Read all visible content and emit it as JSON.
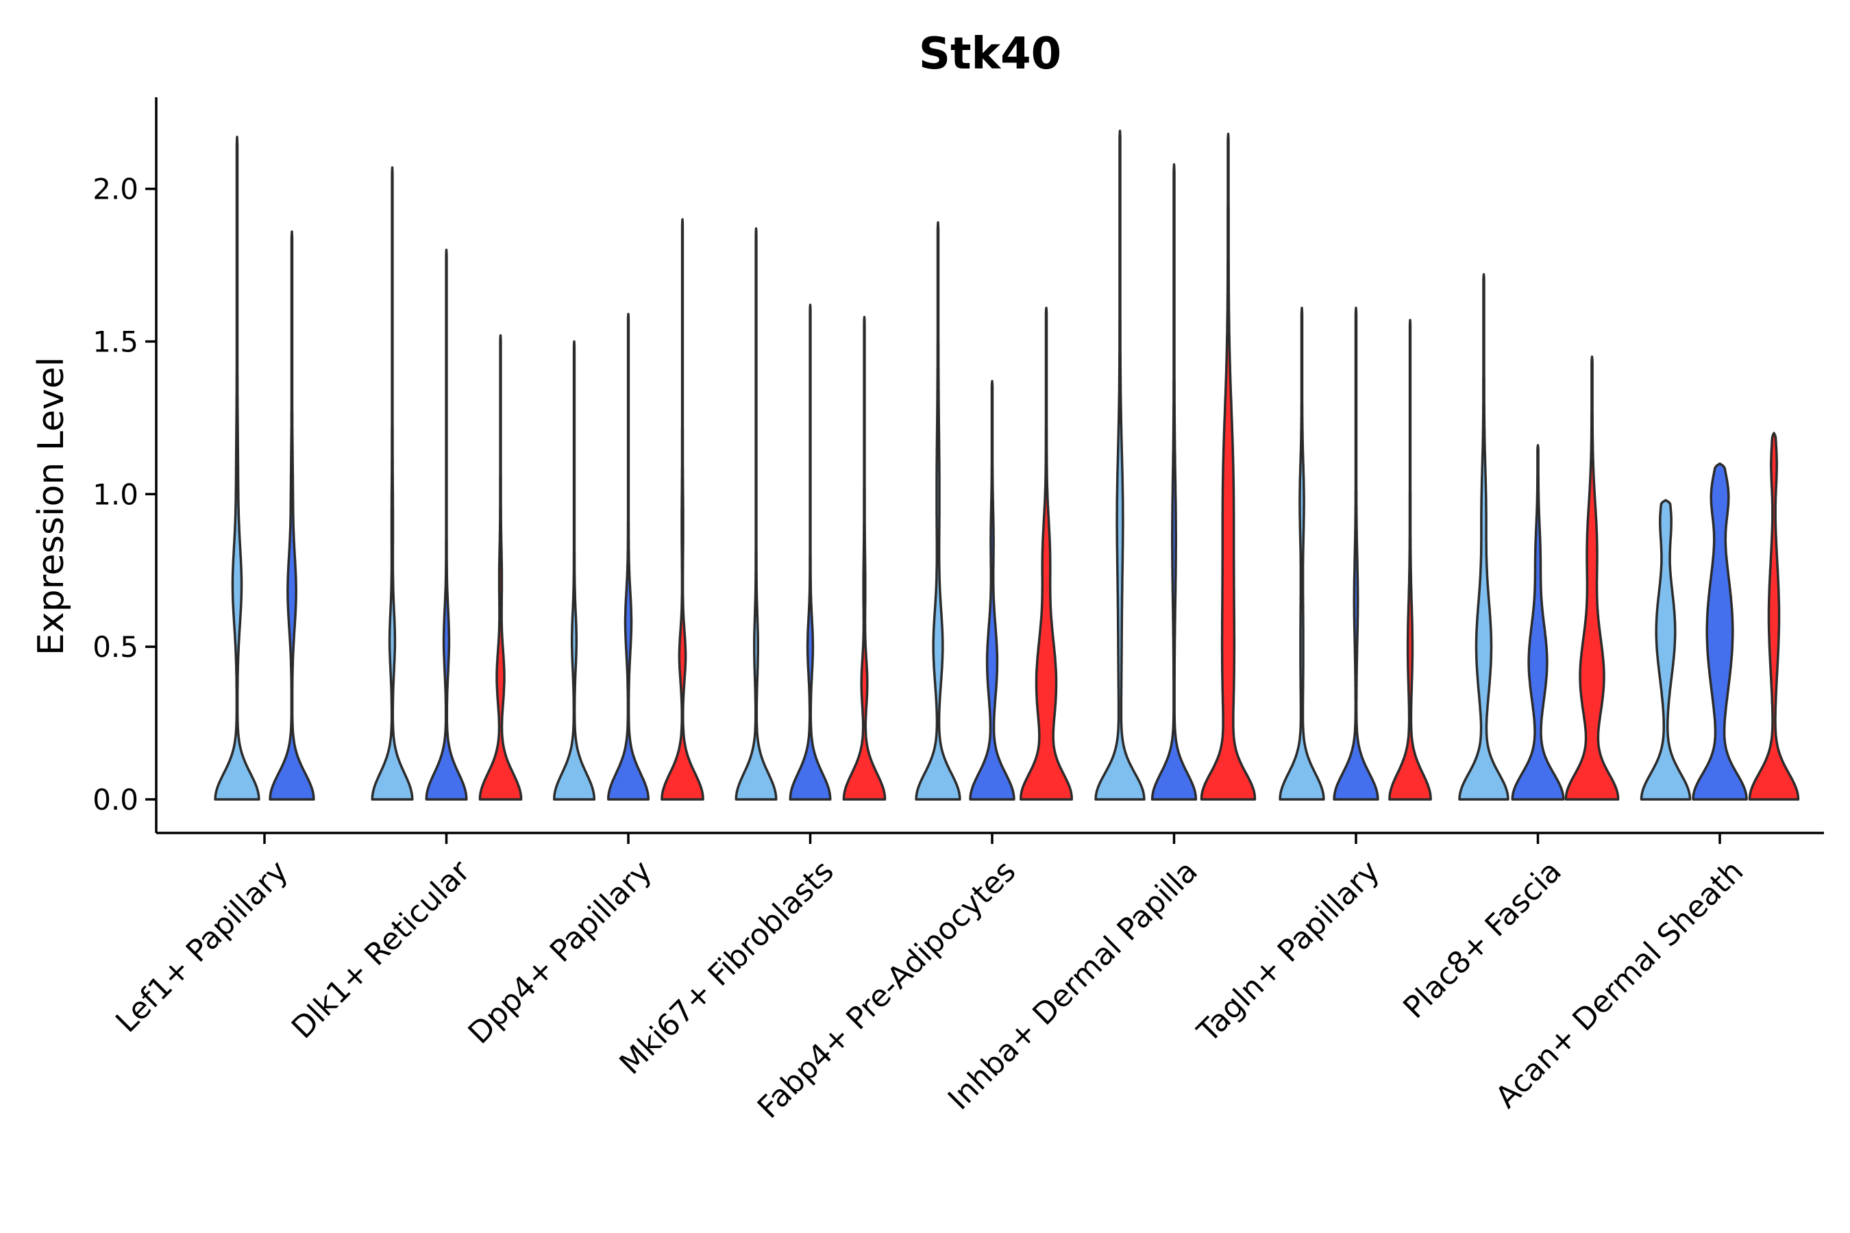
{
  "chart_data": {
    "type": "violin",
    "title": "Stk40",
    "xlabel": "",
    "ylabel": "Expression Level",
    "ylim": [
      -0.11,
      2.3
    ],
    "yticks": [
      "0.0",
      "0.5",
      "1.0",
      "1.5",
      "2.0"
    ],
    "ytick_values": [
      0.0,
      0.5,
      1.0,
      1.5,
      2.0
    ],
    "legend": "none",
    "series_colors": [
      "#7FBFEF",
      "#4470EE",
      "#FF2D2D"
    ],
    "categories": [
      "Lef1+ Papillary",
      "Dlk1+ Reticular",
      "Dpp4+ Papillary",
      "Mki67+ Fibroblasts",
      "Fabp4+ Pre-Adipocytes",
      "Inhba+ Dermal Papilla",
      "Tagln+ Papillary",
      "Plac8+ Fascia",
      "Acan+ Dermal Sheath"
    ],
    "groups": [
      {
        "category": "Lef1+ Papillary",
        "violins": [
          {
            "series": 0,
            "max": 2.17,
            "base": 0.36,
            "modes": [
              [
                0.7,
                0.19,
                0.13
              ],
              [
                1.05,
                0.03,
                0.15
              ]
            ]
          },
          {
            "series": 1,
            "max": 1.86,
            "base": 0.36,
            "modes": [
              [
                0.68,
                0.18,
                0.12
              ],
              [
                1.0,
                0.03,
                0.12
              ]
            ]
          }
        ]
      },
      {
        "category": "Dlk1+ Reticular",
        "violins": [
          {
            "series": 0,
            "max": 2.07,
            "base": 0.33,
            "modes": [
              [
                0.52,
                0.12,
                0.1
              ],
              [
                0.9,
                0.02,
                0.12
              ]
            ]
          },
          {
            "series": 1,
            "max": 1.8,
            "base": 0.33,
            "modes": [
              [
                0.52,
                0.12,
                0.1
              ]
            ]
          },
          {
            "series": 2,
            "max": 1.52,
            "base": 0.34,
            "modes": [
              [
                0.4,
                0.17,
                0.09
              ],
              [
                0.72,
                0.05,
                0.1
              ]
            ]
          }
        ]
      },
      {
        "category": "Dpp4+ Papillary",
        "violins": [
          {
            "series": 0,
            "max": 1.5,
            "base": 0.33,
            "modes": [
              [
                0.52,
                0.1,
                0.09
              ]
            ]
          },
          {
            "series": 1,
            "max": 1.59,
            "base": 0.33,
            "modes": [
              [
                0.58,
                0.14,
                0.1
              ]
            ]
          },
          {
            "series": 2,
            "max": 1.9,
            "base": 0.34,
            "modes": [
              [
                0.47,
                0.14,
                0.08
              ],
              [
                0.9,
                0.02,
                0.1
              ]
            ]
          }
        ]
      },
      {
        "category": "Mki67+ Fibroblasts",
        "violins": [
          {
            "series": 0,
            "max": 1.87,
            "base": 0.33,
            "modes": [
              [
                0.5,
                0.08,
                0.1
              ]
            ]
          },
          {
            "series": 1,
            "max": 1.62,
            "base": 0.33,
            "modes": [
              [
                0.5,
                0.12,
                0.09
              ]
            ]
          },
          {
            "series": 2,
            "max": 1.58,
            "base": 0.34,
            "modes": [
              [
                0.38,
                0.13,
                0.08
              ],
              [
                0.7,
                0.03,
                0.1
              ]
            ]
          }
        ]
      },
      {
        "category": "Fabp4+ Pre-Adipocytes",
        "violins": [
          {
            "series": 0,
            "max": 1.89,
            "base": 0.36,
            "modes": [
              [
                0.5,
                0.2,
                0.12
              ],
              [
                1.0,
                0.05,
                0.2
              ]
            ]
          },
          {
            "series": 1,
            "max": 1.37,
            "base": 0.36,
            "modes": [
              [
                0.45,
                0.22,
                0.12
              ],
              [
                0.85,
                0.05,
                0.1
              ]
            ]
          },
          {
            "series": 2,
            "max": 1.61,
            "base": 0.42,
            "modes": [
              [
                0.38,
                0.39,
                0.16
              ],
              [
                0.8,
                0.13,
                0.12
              ]
            ]
          }
        ]
      },
      {
        "category": "Inhba+ Dermal Papilla",
        "violins": [
          {
            "series": 0,
            "max": 2.19,
            "base": 0.4,
            "modes": [
              [
                0.95,
                0.1,
                0.2
              ],
              [
                0.5,
                0.05,
                0.25
              ]
            ]
          },
          {
            "series": 1,
            "max": 2.08,
            "base": 0.36,
            "modes": [
              [
                0.85,
                0.07,
                0.2
              ]
            ]
          },
          {
            "series": 2,
            "max": 2.18,
            "base": 0.44,
            "modes": [
              [
                0.45,
                0.22,
                0.3
              ],
              [
                1.05,
                0.17,
                0.25
              ]
            ]
          }
        ]
      },
      {
        "category": "Tagln+ Papillary",
        "violins": [
          {
            "series": 0,
            "max": 1.61,
            "base": 0.36,
            "modes": [
              [
                0.98,
                0.08,
                0.12
              ],
              [
                0.5,
                0.05,
                0.2
              ]
            ]
          },
          {
            "series": 1,
            "max": 1.61,
            "base": 0.36,
            "modes": [
              [
                0.65,
                0.07,
                0.14
              ]
            ]
          },
          {
            "series": 2,
            "max": 1.57,
            "base": 0.34,
            "modes": [
              [
                0.5,
                0.1,
                0.14
              ]
            ]
          }
        ]
      },
      {
        "category": "Plac8+ Fascia",
        "violins": [
          {
            "series": 0,
            "max": 1.72,
            "base": 0.4,
            "modes": [
              [
                0.5,
                0.3,
                0.16
              ],
              [
                0.95,
                0.08,
                0.14
              ]
            ]
          },
          {
            "series": 1,
            "max": 1.16,
            "base": 0.42,
            "modes": [
              [
                0.45,
                0.35,
                0.13
              ],
              [
                0.8,
                0.08,
                0.1
              ]
            ]
          },
          {
            "series": 2,
            "max": 1.45,
            "base": 0.43,
            "modes": [
              [
                0.4,
                0.45,
                0.14
              ],
              [
                0.82,
                0.18,
                0.15
              ]
            ]
          }
        ]
      },
      {
        "category": "Acan+ Dermal Sheath",
        "violins": [
          {
            "series": 0,
            "max": 0.98,
            "base": 0.4,
            "modes": [
              [
                0.55,
                0.38,
                0.15
              ],
              [
                0.92,
                0.2,
                0.08
              ]
            ]
          },
          {
            "series": 1,
            "max": 1.1,
            "base": 0.44,
            "modes": [
              [
                0.55,
                0.48,
                0.2
              ],
              [
                1.0,
                0.28,
                0.08
              ]
            ]
          },
          {
            "series": 2,
            "max": 1.2,
            "base": 0.4,
            "modes": [
              [
                0.6,
                0.2,
                0.18
              ],
              [
                1.1,
                0.1,
                0.08
              ]
            ]
          }
        ]
      }
    ]
  }
}
